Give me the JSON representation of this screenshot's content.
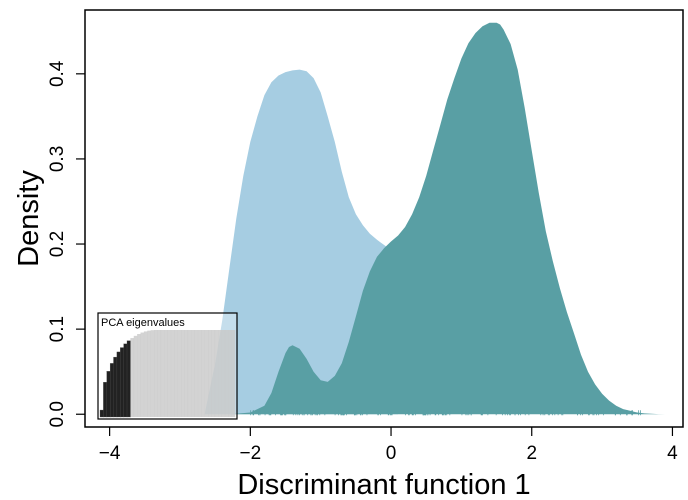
{
  "chart_data": {
    "type": "area",
    "title": "",
    "xlabel": "Discriminant function 1",
    "ylabel": "Density",
    "xlim": [
      -4.35,
      4.15
    ],
    "ylim": [
      -0.015,
      0.475
    ],
    "x_ticks": [
      -4,
      -2,
      0,
      2,
      4
    ],
    "x_tick_labels": [
      "−4",
      "−2",
      "0",
      "2",
      "4"
    ],
    "y_ticks": [
      0.0,
      0.1,
      0.2,
      0.3,
      0.4
    ],
    "y_tick_labels": [
      "0.0",
      "0.1",
      "0.2",
      "0.3",
      "0.4"
    ],
    "grid": false,
    "legend": "none",
    "series": [
      {
        "color": "#a6cde2",
        "x": [
          -2.65,
          -2.6,
          -2.5,
          -2.4,
          -2.3,
          -2.2,
          -2.1,
          -2.0,
          -1.9,
          -1.8,
          -1.7,
          -1.6,
          -1.5,
          -1.4,
          -1.3,
          -1.2,
          -1.1,
          -1.0,
          -0.9,
          -0.8,
          -0.7,
          -0.6,
          -0.5,
          -0.4,
          -0.3,
          -0.2,
          -0.1,
          0.0,
          0.1
        ],
        "values": [
          0.0,
          0.02,
          0.06,
          0.11,
          0.17,
          0.23,
          0.28,
          0.32,
          0.35,
          0.375,
          0.39,
          0.398,
          0.402,
          0.404,
          0.405,
          0.403,
          0.395,
          0.378,
          0.35,
          0.32,
          0.285,
          0.255,
          0.235,
          0.222,
          0.212,
          0.205,
          0.199,
          0.193,
          0.188
        ]
      },
      {
        "color": "#599fa4",
        "x": [
          -2.3,
          -2.0,
          -1.8,
          -1.7,
          -1.6,
          -1.5,
          -1.45,
          -1.4,
          -1.3,
          -1.2,
          -1.1,
          -1.0,
          -0.9,
          -0.8,
          -0.7,
          -0.6,
          -0.5,
          -0.4,
          -0.3,
          -0.2,
          -0.1,
          0.0,
          0.1,
          0.2,
          0.3,
          0.4,
          0.5,
          0.6,
          0.7,
          0.8,
          0.9,
          1.0,
          1.1,
          1.2,
          1.3,
          1.4,
          1.5,
          1.55,
          1.6,
          1.7,
          1.8,
          1.9,
          2.0,
          2.1,
          2.2,
          2.3,
          2.4,
          2.5,
          2.6,
          2.7,
          2.8,
          2.9,
          3.0,
          3.1,
          3.2,
          3.3,
          3.4,
          3.5,
          3.6,
          3.7,
          3.8,
          3.9
        ],
        "values": [
          0.0,
          0.002,
          0.01,
          0.025,
          0.05,
          0.072,
          0.079,
          0.081,
          0.077,
          0.065,
          0.05,
          0.04,
          0.038,
          0.045,
          0.06,
          0.085,
          0.115,
          0.145,
          0.168,
          0.185,
          0.195,
          0.203,
          0.21,
          0.22,
          0.235,
          0.255,
          0.28,
          0.31,
          0.34,
          0.37,
          0.395,
          0.418,
          0.436,
          0.448,
          0.456,
          0.46,
          0.46,
          0.458,
          0.452,
          0.435,
          0.405,
          0.36,
          0.31,
          0.26,
          0.215,
          0.18,
          0.148,
          0.12,
          0.095,
          0.07,
          0.05,
          0.035,
          0.024,
          0.016,
          0.01,
          0.006,
          0.004,
          0.002,
          0.001,
          0.0005,
          0.0002,
          0.0
        ]
      }
    ],
    "inset": {
      "title": "PCA eigenvalues",
      "bar_count": 40,
      "retained": 9,
      "dark_color": "#222222",
      "light_color": "#c8c8c8"
    }
  }
}
